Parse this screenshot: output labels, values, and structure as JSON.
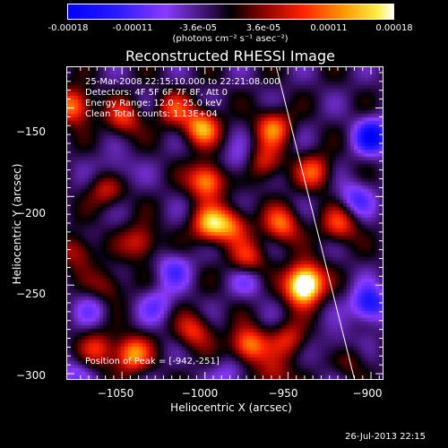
{
  "colorbar": {
    "ticks": [
      "-0.00018",
      "-0.00011",
      "-3.6e-05",
      "3.6e-05",
      "0.00011",
      "0.00018"
    ],
    "units": "(photons cm⁻² s⁻¹ asec⁻²)",
    "range": [
      -0.00018,
      0.00018
    ]
  },
  "info": {
    "time_range": "25-Mar-2008 22:15:10.000 to 22:21:08.000",
    "detectors": "Detectors: 4F 5F 6F 7F 8F, Att 0",
    "energy": "Energy Range: 12.0 - 25.0 keV",
    "method": "Clean    Total counts: 1.13E+04",
    "peak": "Position of Peak = [-942,-251]"
  },
  "datestamp": "26-Jul-2013 22:15",
  "colors": {
    "background": "#000000",
    "text": "#ffffff",
    "limb_line": "#ffffff"
  },
  "chart_data": {
    "type": "heatmap",
    "title": "Reconstructed RHESSI Image",
    "xlabel": "Heliocentric X (arcsec)",
    "ylabel": "Heliocentric Y (arcsec)",
    "xlim": [
      -1083,
      -893
    ],
    "ylim": [
      -303,
      -127
    ],
    "xticks": [
      -1050,
      -1000,
      -950,
      -900
    ],
    "yticks": [
      -300,
      -250,
      -200,
      -150
    ],
    "xtick_labels": [
      "−1050",
      "−1000",
      "−950",
      "−900"
    ],
    "ytick_labels": [
      "−300",
      "−250",
      "−200",
      "−150"
    ],
    "colormap": "rainbow-to-hot (blue, purple, black, red, orange, yellow, white)",
    "peak": [
      -942,
      -251
    ],
    "limb_line": [
      [
        -957,
        -127
      ],
      [
        -910,
        -303
      ]
    ],
    "blobs": [
      {
        "x": -1080,
        "y": -148,
        "v": 0.8
      },
      {
        "x": -1050,
        "y": -155,
        "v": 0.55
      },
      {
        "x": -1020,
        "y": -150,
        "v": 0.5
      },
      {
        "x": -1003,
        "y": -160,
        "v": 0.85
      },
      {
        "x": -1000,
        "y": -190,
        "v": 0.9
      },
      {
        "x": -998,
        "y": -215,
        "v": 0.85
      },
      {
        "x": -985,
        "y": -215,
        "v": 0.6
      },
      {
        "x": -960,
        "y": -160,
        "v": 0.7
      },
      {
        "x": -965,
        "y": -180,
        "v": 0.55
      },
      {
        "x": -935,
        "y": -185,
        "v": 0.6
      },
      {
        "x": -975,
        "y": -235,
        "v": 0.6
      },
      {
        "x": -955,
        "y": -215,
        "v": 0.7
      },
      {
        "x": -940,
        "y": -245,
        "v": 0.7
      },
      {
        "x": -942,
        "y": -251,
        "v": 1.0
      },
      {
        "x": -920,
        "y": -215,
        "v": 0.6
      },
      {
        "x": -950,
        "y": -280,
        "v": 0.5
      },
      {
        "x": -1060,
        "y": -195,
        "v": 0.5
      },
      {
        "x": -1078,
        "y": -230,
        "v": 0.45
      },
      {
        "x": -1040,
        "y": -225,
        "v": 0.55
      },
      {
        "x": -1060,
        "y": -250,
        "v": 0.4
      },
      {
        "x": -1045,
        "y": -288,
        "v": 0.8
      },
      {
        "x": -1065,
        "y": -285,
        "v": 0.5
      },
      {
        "x": -975,
        "y": -283,
        "v": 0.85
      },
      {
        "x": -1008,
        "y": -275,
        "v": 0.55
      },
      {
        "x": -960,
        "y": -300,
        "v": 0.45
      },
      {
        "x": -915,
        "y": -290,
        "v": 0.4
      },
      {
        "x": -1030,
        "y": -260,
        "v": -0.35
      },
      {
        "x": -1020,
        "y": -240,
        "v": -0.4
      },
      {
        "x": -1055,
        "y": -185,
        "v": -0.3
      },
      {
        "x": -1068,
        "y": -262,
        "v": -0.3
      },
      {
        "x": -980,
        "y": -180,
        "v": -0.3
      },
      {
        "x": -975,
        "y": -245,
        "v": -0.35
      },
      {
        "x": -900,
        "y": -165,
        "v": -0.8
      },
      {
        "x": -902,
        "y": -260,
        "v": -0.75
      },
      {
        "x": -910,
        "y": -200,
        "v": -0.45
      },
      {
        "x": -920,
        "y": -285,
        "v": -0.35
      },
      {
        "x": -1080,
        "y": -300,
        "v": -0.3
      },
      {
        "x": -985,
        "y": -300,
        "v": -0.3
      }
    ]
  }
}
